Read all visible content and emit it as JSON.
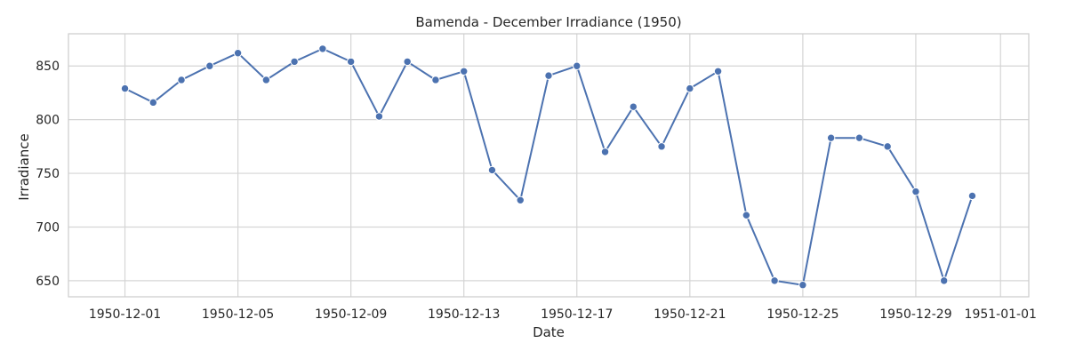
{
  "chart_data": {
    "type": "line",
    "title": "Bamenda - December Irradiance (1950)",
    "xlabel": "Date",
    "ylabel": "Irradiance",
    "x_ticks": [
      "1950-12-01",
      "1950-12-05",
      "1950-12-09",
      "1950-12-13",
      "1950-12-17",
      "1950-12-21",
      "1950-12-25",
      "1950-12-29",
      "1951-01-01"
    ],
    "y_ticks": [
      650,
      700,
      750,
      800,
      850
    ],
    "ylim": [
      635,
      880
    ],
    "xlim": [
      "1950-11-29",
      "1951-01-02"
    ],
    "grid": true,
    "colors": {
      "line": "#4c72b0",
      "grid": "#d5d5d5",
      "frame": "#cccccc"
    },
    "series": [
      {
        "x": [
          "1950-12-01",
          "1950-12-02",
          "1950-12-03",
          "1950-12-04",
          "1950-12-05",
          "1950-12-06",
          "1950-12-07",
          "1950-12-08",
          "1950-12-09",
          "1950-12-10",
          "1950-12-11",
          "1950-12-12",
          "1950-12-13",
          "1950-12-14",
          "1950-12-15",
          "1950-12-16",
          "1950-12-17",
          "1950-12-18",
          "1950-12-19",
          "1950-12-20",
          "1950-12-21",
          "1950-12-22",
          "1950-12-23",
          "1950-12-24",
          "1950-12-25",
          "1950-12-26",
          "1950-12-27",
          "1950-12-28",
          "1950-12-29",
          "1950-12-30",
          "1950-12-31"
        ],
        "values": [
          829,
          816,
          837,
          850,
          862,
          837,
          854,
          866,
          854,
          803,
          854,
          837,
          845,
          753,
          725,
          841,
          850,
          770,
          812,
          775,
          829,
          845,
          711,
          650,
          646,
          783,
          783,
          775,
          733,
          650,
          729
        ]
      }
    ]
  }
}
